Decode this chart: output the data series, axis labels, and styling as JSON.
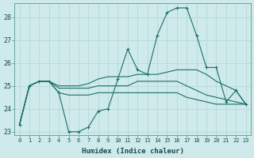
{
  "xlabel": "Humidex (Indice chaleur)",
  "background_color": "#ceeaea",
  "grid_color": "#b8d8d8",
  "line_color": "#1a6e6a",
  "xmin": -0.5,
  "xmax": 23.5,
  "ymin": 22.85,
  "ymax": 28.6,
  "x": [
    0,
    1,
    2,
    3,
    4,
    5,
    6,
    7,
    8,
    9,
    10,
    11,
    12,
    13,
    14,
    15,
    16,
    17,
    18,
    19,
    20,
    21,
    22,
    23
  ],
  "line_spiky": [
    23.3,
    25.0,
    25.2,
    25.2,
    24.7,
    23.0,
    23.0,
    23.2,
    23.9,
    24.0,
    25.3,
    26.6,
    25.7,
    25.5,
    27.2,
    28.2,
    28.4,
    28.4,
    27.2,
    25.8,
    25.8,
    24.3,
    24.8,
    24.2
  ],
  "line_upper": [
    23.3,
    25.0,
    25.2,
    25.2,
    25.0,
    25.0,
    25.0,
    25.1,
    25.3,
    25.4,
    25.4,
    25.4,
    25.5,
    25.5,
    25.5,
    25.6,
    25.7,
    25.7,
    25.7,
    25.5,
    25.2,
    25.0,
    24.8,
    24.2
  ],
  "line_mid": [
    23.3,
    25.0,
    25.2,
    25.2,
    24.9,
    24.9,
    24.9,
    24.9,
    25.0,
    25.0,
    25.0,
    25.0,
    25.2,
    25.2,
    25.2,
    25.2,
    25.2,
    25.0,
    24.8,
    24.6,
    24.5,
    24.4,
    24.3,
    24.2
  ],
  "line_lower": [
    23.3,
    25.0,
    25.2,
    25.2,
    24.7,
    24.6,
    24.6,
    24.6,
    24.7,
    24.7,
    24.7,
    24.7,
    24.7,
    24.7,
    24.7,
    24.7,
    24.7,
    24.5,
    24.4,
    24.3,
    24.2,
    24.2,
    24.2,
    24.2
  ],
  "yticks": [
    23,
    24,
    25,
    26,
    27,
    28
  ],
  "xticks": [
    0,
    1,
    2,
    3,
    4,
    5,
    6,
    7,
    8,
    9,
    10,
    11,
    12,
    13,
    14,
    15,
    16,
    17,
    18,
    19,
    20,
    21,
    22,
    23
  ]
}
